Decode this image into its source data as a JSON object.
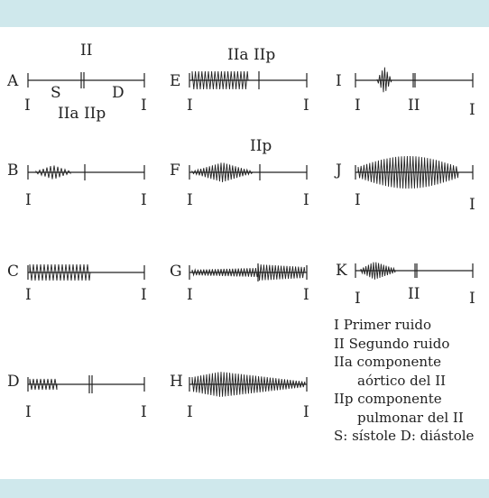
{
  "theme": {
    "band_color": "#cfe8ec",
    "ink_color": "#222222"
  },
  "panels": [
    {
      "letter": "A",
      "tick_left": "I",
      "tick_right": "I",
      "marker_top": "II",
      "phase_s": "S",
      "phase_d": "D",
      "components": "IIa IIp"
    },
    {
      "letter": "B",
      "tick_left": "I",
      "tick_right": "I"
    },
    {
      "letter": "C",
      "tick_left": "I",
      "tick_right": "I"
    },
    {
      "letter": "D",
      "tick_left": "I",
      "tick_right": "I"
    },
    {
      "letter": "E",
      "tick_left": "I",
      "tick_right": "I",
      "components": "IIa IIp"
    },
    {
      "letter": "F",
      "tick_left": "I",
      "tick_right": "I",
      "components": "IIp"
    },
    {
      "letter": "G",
      "tick_left": "I",
      "tick_right": "I"
    },
    {
      "letter": "H",
      "tick_left": "I",
      "tick_right": "I"
    },
    {
      "letter": "I",
      "tick_left": "I",
      "tick_mid": "II",
      "tick_right": "I"
    },
    {
      "letter": "J",
      "tick_left": "I",
      "tick_right": "I"
    },
    {
      "letter": "K",
      "tick_left": "I",
      "tick_mid": "II",
      "tick_right": "I"
    }
  ],
  "legend": [
    {
      "text": "I Primer ruido",
      "indent": false
    },
    {
      "text": "II Segundo ruido",
      "indent": false
    },
    {
      "text": "IIa componente",
      "indent": false
    },
    {
      "text": "aórtico del II",
      "indent": true
    },
    {
      "text": "IIp componente",
      "indent": false
    },
    {
      "text": "pulmonar del II",
      "indent": true
    },
    {
      "text": "S: sístole D: diástole",
      "indent": false
    }
  ]
}
